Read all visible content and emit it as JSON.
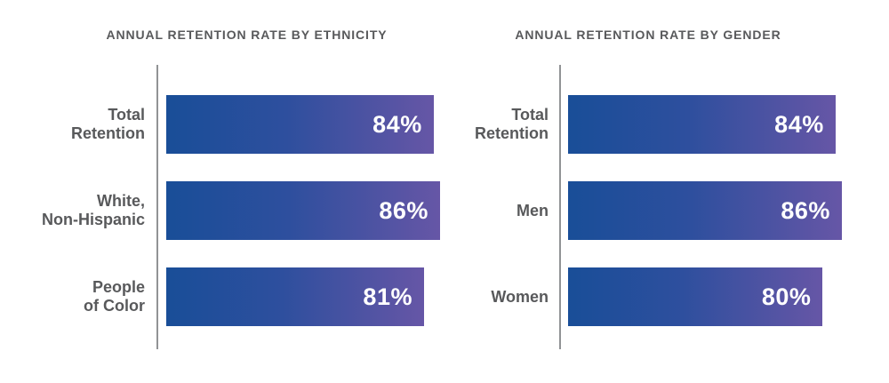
{
  "chart_data": [
    {
      "type": "bar",
      "orientation": "horizontal",
      "title": "ANNUAL RETENTION RATE BY ETHNICITY",
      "categories": [
        "Total Retention",
        "White, Non-Hispanic",
        "People of Color"
      ],
      "display_labels": [
        "Total\nRetention",
        "White,\nNon-Hispanic",
        "People\nof Color"
      ],
      "values": [
        84,
        86,
        81
      ],
      "value_labels": [
        "84%",
        "86%",
        "81%"
      ],
      "xlim": [
        0,
        100
      ],
      "grid": false,
      "legend": false,
      "value_label_position": "inside-end"
    },
    {
      "type": "bar",
      "orientation": "horizontal",
      "title": "ANNUAL RETENTION RATE BY GENDER",
      "categories": [
        "Total Retention",
        "Men",
        "Women"
      ],
      "display_labels": [
        "Total\nRetention",
        "Men",
        "Women"
      ],
      "values": [
        84,
        86,
        80
      ],
      "value_labels": [
        "84%",
        "86%",
        "80%"
      ],
      "xlim": [
        0,
        100
      ],
      "grid": false,
      "legend": false,
      "value_label_position": "inside-end"
    }
  ],
  "colors": {
    "bar_gradient_start": "#194e98",
    "bar_gradient_end": "#6656a6",
    "title_text": "#58595b",
    "category_text": "#58595b",
    "value_text": "#ffffff",
    "axis_line": "#919395",
    "background": "#ffffff"
  }
}
